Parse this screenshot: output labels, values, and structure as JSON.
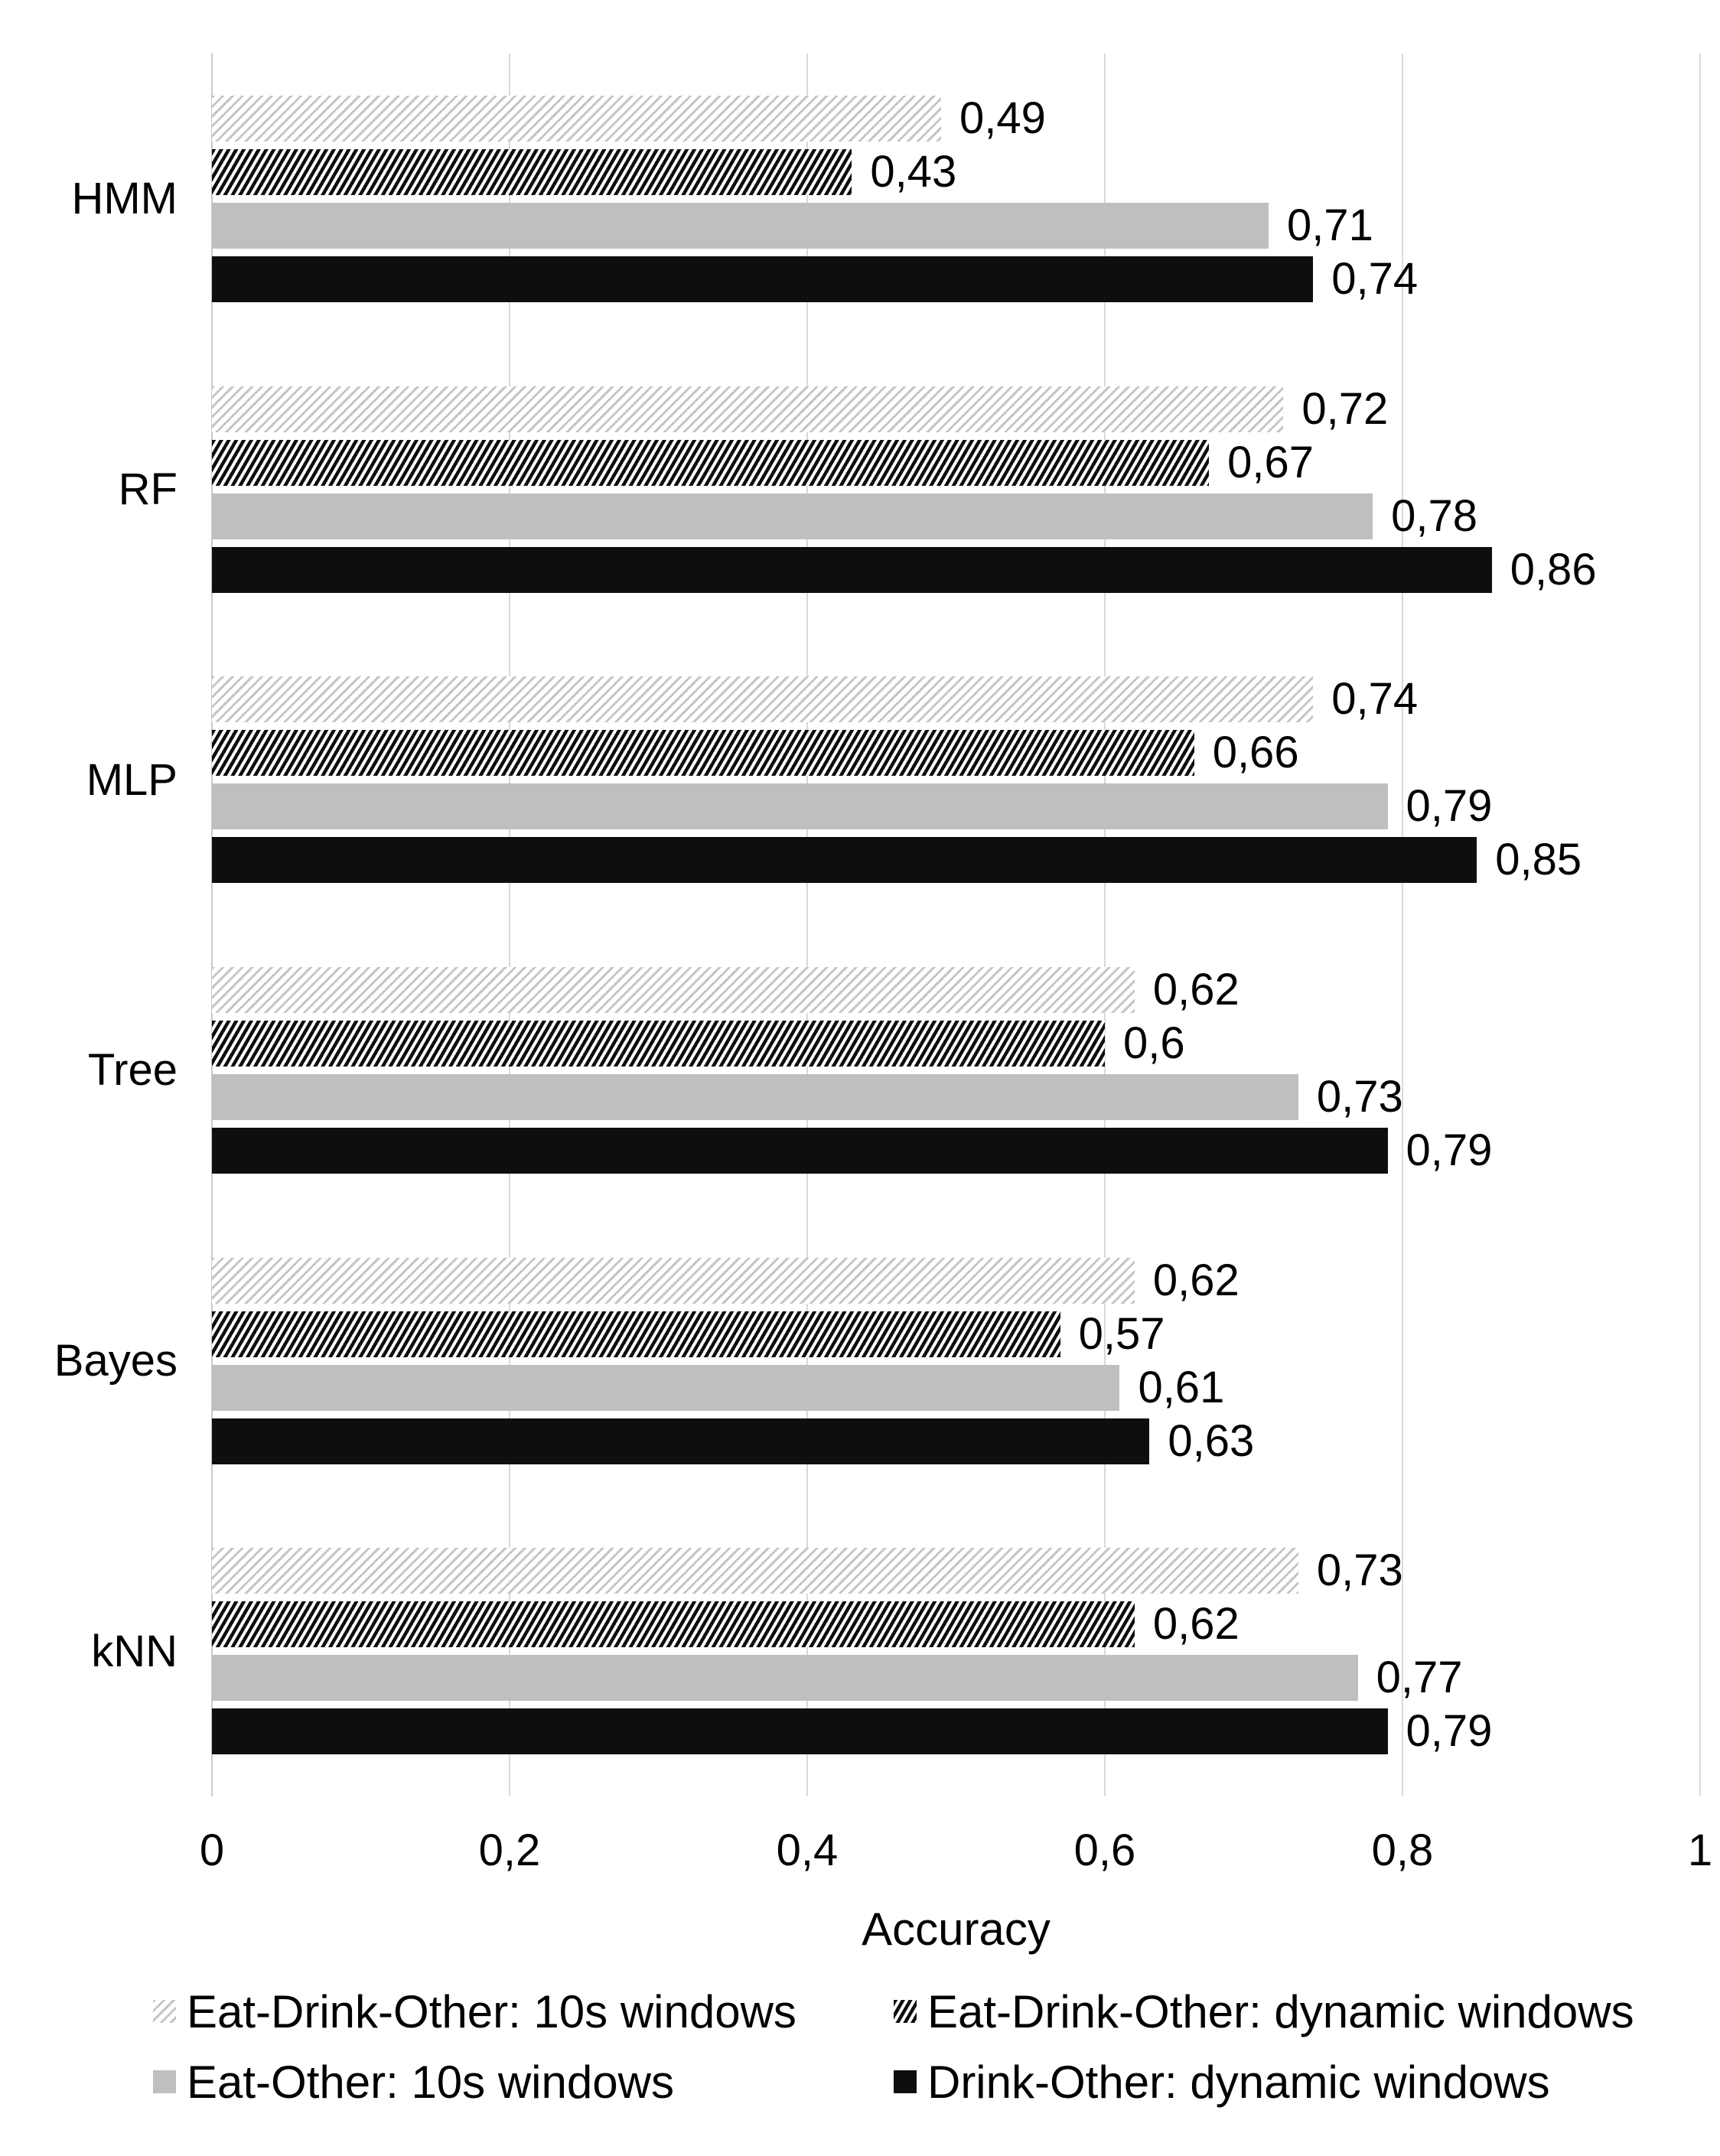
{
  "chart_data": {
    "type": "bar",
    "orientation": "horizontal",
    "xlabel": "Accuracy",
    "xlim": [
      0,
      1
    ],
    "xticks": [
      0,
      0.2,
      0.4,
      0.6,
      0.8,
      1
    ],
    "xtick_labels": [
      "0",
      "0,2",
      "0,4",
      "0,6",
      "0,8",
      "1"
    ],
    "grid": true,
    "legend_position": "bottom",
    "categories": [
      "HMM",
      "RF",
      "MLP",
      "Tree",
      "Bayes",
      "kNN"
    ],
    "series": [
      {
        "name": "Eat-Drink-Other: 10s windows",
        "style": "light-gray-diagonal-hatch",
        "values": [
          0.49,
          0.72,
          0.74,
          0.62,
          0.62,
          0.73
        ],
        "value_labels": [
          "0,49",
          "0,72",
          "0,74",
          "0,62",
          "0,62",
          "0,73"
        ]
      },
      {
        "name": "Eat-Drink-Other: dynamic windows",
        "style": "black-diagonal-hatch",
        "values": [
          0.43,
          0.67,
          0.66,
          0.6,
          0.57,
          0.62
        ],
        "value_labels": [
          "0,43",
          "0,67",
          "0,66",
          "0,6",
          "0,57",
          "0,62"
        ]
      },
      {
        "name": "Eat-Other: 10s windows",
        "style": "solid-gray",
        "values": [
          0.71,
          0.78,
          0.79,
          0.73,
          0.61,
          0.77
        ],
        "value_labels": [
          "0,71",
          "0,78",
          "0,79",
          "0,73",
          "0,61",
          "0,77"
        ]
      },
      {
        "name": "Drink-Other: dynamic windows",
        "style": "solid-black",
        "values": [
          0.74,
          0.86,
          0.85,
          0.79,
          0.63,
          0.79
        ],
        "value_labels": [
          "0,74",
          "0,86",
          "0,85",
          "0,79",
          "0,63",
          "0,79"
        ]
      }
    ],
    "colors": {
      "solid_gray": "#bfbfbf",
      "solid_black": "#0e0e0e",
      "hatch_light_stripe": "#c5c5c5",
      "hatch_dark_stripe": "#0e0e0e",
      "hatch_background": "#ffffff",
      "gridline": "#d9d9d9",
      "axis_line": "#c9c9c9",
      "text": "#000000"
    }
  }
}
